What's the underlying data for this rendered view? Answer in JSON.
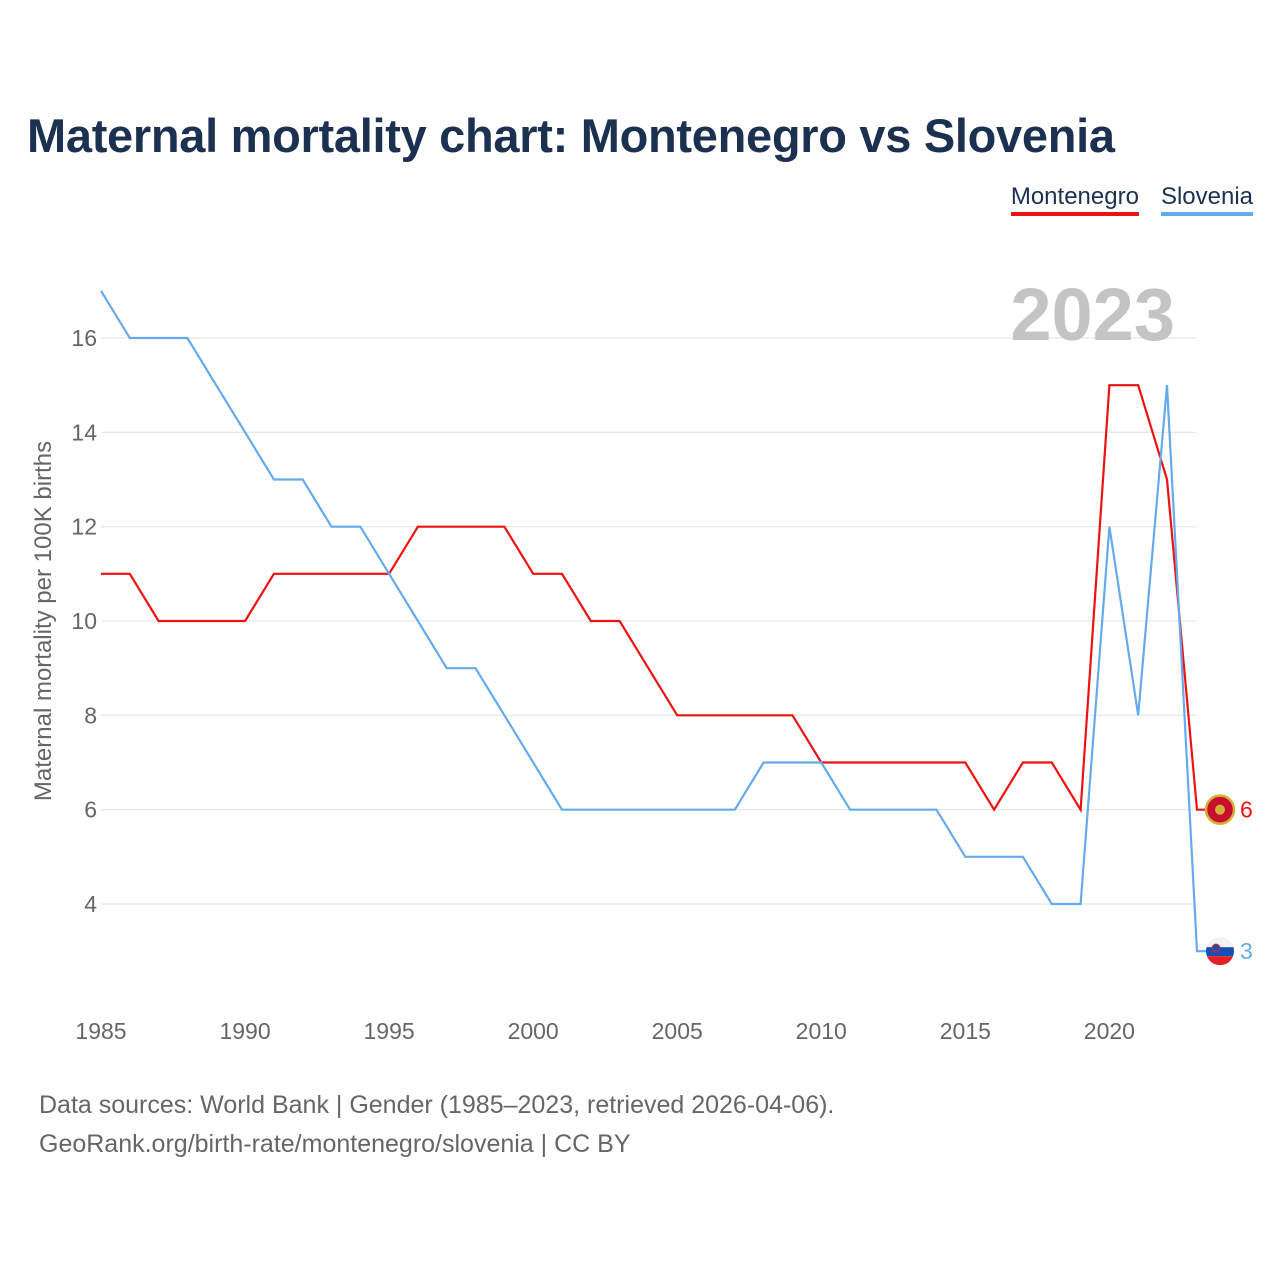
{
  "title": "Maternal mortality chart: Montenegro vs Slovenia",
  "legend": [
    {
      "name": "Montenegro",
      "color": "#ee1111"
    },
    {
      "name": "Slovenia",
      "color": "#66aaee"
    }
  ],
  "source": {
    "line1": "Data sources: World Bank | Gender (1985–2023, retrieved 2026-04-06).",
    "line2": "GeoRank.org/birth-rate/montenegro/slovenia | CC BY"
  },
  "chart_data": {
    "type": "line",
    "title": "Maternal mortality chart: Montenegro vs Slovenia",
    "xlabel": "",
    "ylabel": "Maternal mortality per 100K births",
    "year_label": "2023",
    "xlim": [
      1985,
      2023
    ],
    "ylim": [
      2,
      17
    ],
    "x_ticks": [
      1985,
      1990,
      1995,
      2000,
      2005,
      2010,
      2015,
      2020
    ],
    "y_ticks": [
      4,
      6,
      8,
      10,
      12,
      14,
      16
    ],
    "x": [
      1985,
      1986,
      1987,
      1988,
      1989,
      1990,
      1991,
      1992,
      1993,
      1994,
      1995,
      1996,
      1997,
      1998,
      1999,
      2000,
      2001,
      2002,
      2003,
      2004,
      2005,
      2006,
      2007,
      2008,
      2009,
      2010,
      2011,
      2012,
      2013,
      2014,
      2015,
      2016,
      2017,
      2018,
      2019,
      2020,
      2021,
      2022,
      2023
    ],
    "series": [
      {
        "name": "Montenegro",
        "color": "#ee1111",
        "end_label": "6",
        "values": [
          11,
          11,
          10,
          10,
          10,
          10,
          11,
          11,
          11,
          11,
          11,
          12,
          12,
          12,
          12,
          11,
          11,
          10,
          10,
          9,
          8,
          8,
          8,
          8,
          8,
          7,
          7,
          7,
          7,
          7,
          7,
          6,
          7,
          7,
          6,
          15,
          15,
          13,
          6
        ]
      },
      {
        "name": "Slovenia",
        "color": "#66aaee",
        "end_label": "3",
        "values": [
          17,
          16,
          16,
          16,
          15,
          14,
          13,
          13,
          12,
          12,
          11,
          10,
          9,
          9,
          8,
          7,
          6,
          6,
          6,
          6,
          6,
          6,
          6,
          7,
          7,
          7,
          6,
          6,
          6,
          6,
          5,
          5,
          5,
          4,
          4,
          12,
          8,
          15,
          3
        ]
      }
    ]
  }
}
